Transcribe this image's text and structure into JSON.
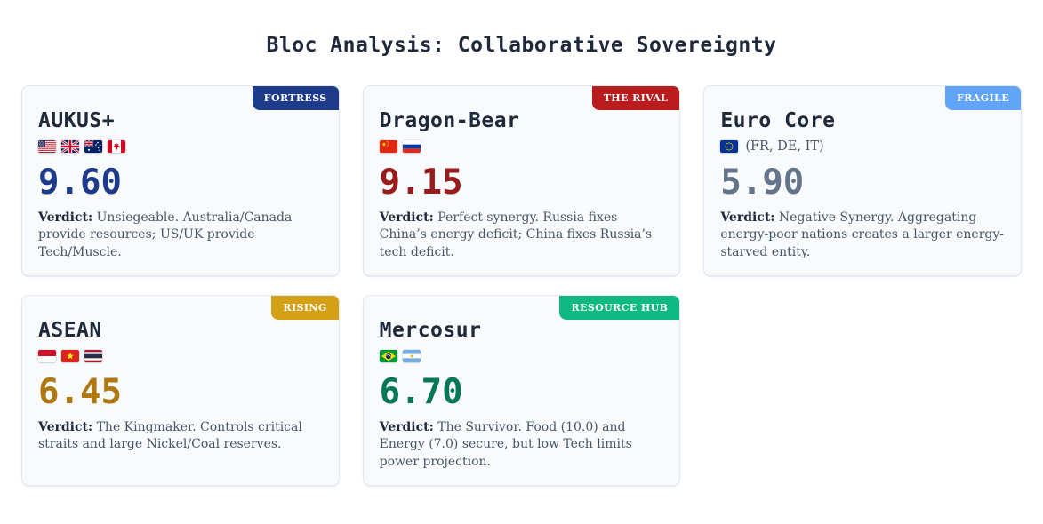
{
  "page": {
    "title": "Bloc Analysis: Collaborative Sovereignty",
    "background_color": "#ffffff",
    "card_background_color": "#f8fafc",
    "card_border_color": "#e2e8f0"
  },
  "cards": [
    {
      "name": "AUKUS+",
      "badge": "FORTRESS",
      "badge_color": "#1e3a8a",
      "flags": [
        "us",
        "gb",
        "au",
        "ca"
      ],
      "flags_note": "",
      "score": "9.60",
      "score_color": "#1e3a8a",
      "verdict_label": "Verdict:",
      "verdict": "Unsiegeable. Australia/Canada provide resources; US/UK provide Tech/Muscle."
    },
    {
      "name": "Dragon-Bear",
      "badge": "THE RIVAL",
      "badge_color": "#b91c1c",
      "flags": [
        "cn",
        "ru"
      ],
      "flags_note": "",
      "score": "9.15",
      "score_color": "#991b1b",
      "verdict_label": "Verdict:",
      "verdict": "Perfect synergy. Russia fixes China’s energy deficit; China fixes Russia’s tech deficit."
    },
    {
      "name": "Euro Core",
      "badge": "FRAGILE",
      "badge_color": "#60a5fa",
      "flags": [
        "eu"
      ],
      "flags_note": "(FR, DE, IT)",
      "score": "5.90",
      "score_color": "#64748b",
      "verdict_label": "Verdict:",
      "verdict": "Negative Synergy. Aggregating energy-poor nations creates a larger energy-starved entity."
    },
    {
      "name": "ASEAN",
      "badge": "RISING",
      "badge_color": "#d4a015",
      "flags": [
        "id",
        "vn",
        "th"
      ],
      "flags_note": "",
      "score": "6.45",
      "score_color": "#b0790f",
      "verdict_label": "Verdict:",
      "verdict": "The Kingmaker. Controls critical straits and large Nickel/Coal reserves."
    },
    {
      "name": "Mercosur",
      "badge": "RESOURCE HUB",
      "badge_color": "#10b981",
      "flags": [
        "br",
        "ar"
      ],
      "flags_note": "",
      "score": "6.70",
      "score_color": "#047857",
      "verdict_label": "Verdict:",
      "verdict": "The Survivor. Food (10.0) and Energy (7.0) secure, but low Tech limits power projection."
    }
  ]
}
